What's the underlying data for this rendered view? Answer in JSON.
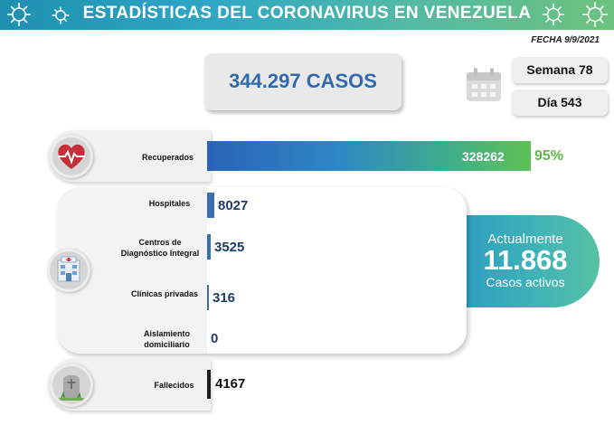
{
  "header": {
    "title": "ESTADÍSTICAS DEL CORONAVIRUS EN VENEZUELA"
  },
  "fecha": "FECHA 9/9/2021",
  "total_casos": "344.297 CASOS",
  "semana": "Semana 78",
  "dia": "Día 543",
  "activos": {
    "line1": "Actualmente",
    "number": "11.868",
    "line2": "Casos activos"
  },
  "colors": {
    "bar_blue": "#3b6db3",
    "accent_green": "#5cb946",
    "header": "#2fa7c4"
  },
  "icons": [
    "virus-icon",
    "calendar-icon",
    "heart-pulse-icon",
    "hospital-icon",
    "tombstone-icon"
  ],
  "chart_data": {
    "type": "bar",
    "orientation": "horizontal",
    "categories": [
      "Recuperados",
      "Hospitales",
      "Centros de Diagnóstico Integral",
      "Clínicas privadas",
      "Aislamiento domiciliario",
      "Fallecidos"
    ],
    "values": [
      328262,
      8027,
      3525,
      316,
      0,
      4167
    ],
    "labels": [
      "328262",
      "8027",
      "3525",
      "316",
      "0",
      "4167"
    ],
    "recuperados_pct": "95%"
  }
}
